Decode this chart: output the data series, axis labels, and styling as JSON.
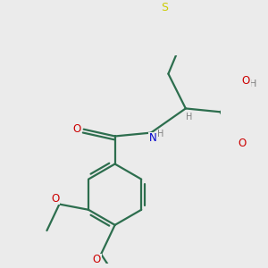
{
  "background_color": "#ebebeb",
  "bond_color": "#2d6e4e",
  "S_color": "#cccc00",
  "N_color": "#0000cc",
  "O_color": "#cc0000",
  "H_color": "#808080",
  "line_width": 1.6,
  "figsize": [
    3.0,
    3.0
  ],
  "dpi": 100,
  "xlim": [
    0,
    300
  ],
  "ylim": [
    0,
    300
  ]
}
